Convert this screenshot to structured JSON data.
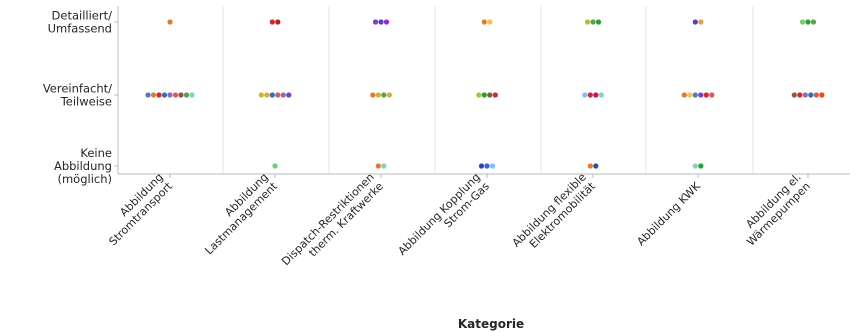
{
  "chart_data": {
    "type": "scatter",
    "xlabel": "Kategorie",
    "ylabel": "",
    "grid": "vertical",
    "categories": [
      "Abbildung Stromtransport",
      "Abbildung Lastmanagement",
      "Dispatch-Restriktionen therm. Kraftwerke",
      "Abbildung Kopplung Strom-Gas",
      "Abbildung flexible Elektromobilität",
      "Abbildung KWK",
      "Abbildung el. Wärmepumpen"
    ],
    "category_lines": [
      [
        "Abbildung",
        "Stromtransport"
      ],
      [
        "Abbildung",
        "Lastmanagement"
      ],
      [
        "Dispatch-Restriktionen",
        "therm. Kraftwerke"
      ],
      [
        "Abbildung Kopplung",
        "Strom-Gas"
      ],
      [
        "Abbildung flexible",
        "Elektromobilität"
      ],
      [
        "Abbildung KWK"
      ],
      [
        "Abbildung el.",
        "Wärmepumpen"
      ]
    ],
    "levels": [
      [
        "Detailliert/",
        "Umfassend"
      ],
      [
        "Vereinfacht/",
        "Teilweise"
      ],
      [
        "Keine",
        "Abbildung",
        "(möglich)"
      ]
    ],
    "points": [
      [
        [
          "#e8792b"
        ],
        [
          "#4e79c8",
          "#e8792b",
          "#d62728",
          "#1f77b4",
          "#9467bd",
          "#e15759",
          "#8c564b",
          "#59a14f",
          "#7fd3c4"
        ],
        []
      ],
      [
        [
          "#d62728",
          "#b5222a"
        ],
        [
          "#bcbd22",
          "#e8a33a",
          "#1f77b4",
          "#e15759",
          "#9467bd",
          "#7b3fbf"
        ],
        [
          "#6fcf6f"
        ]
      ],
      [
        [
          "#7b3fbf",
          "#5a3fb5",
          "#8a2be2"
        ],
        [
          "#e8792b",
          "#bcbd22",
          "#59a14f",
          "#e8a33a"
        ],
        [
          "#e8792b",
          "#7fd3c4"
        ]
      ],
      [
        [
          "#e8792b",
          "#f2c14e"
        ],
        [
          "#9acd32",
          "#2ca02c",
          "#8c564b",
          "#d62728"
        ],
        [
          "#2c3fbf",
          "#3f5fd8",
          "#7fbfff"
        ]
      ],
      [
        [
          "#bcbd22",
          "#59a14f",
          "#2ca02c"
        ],
        [
          "#7fbfff",
          "#d62728",
          "#c2185b",
          "#7fd3c4"
        ],
        [
          "#e8792b",
          "#1f4fbf"
        ]
      ],
      [
        [
          "#5a3fb5",
          "#e8a33a"
        ],
        [
          "#e8792b",
          "#f2c14e",
          "#4e79c8",
          "#7b3fbf",
          "#d62728",
          "#e15759"
        ],
        [
          "#7fd3c4",
          "#2ca02c"
        ]
      ],
      [
        [
          "#6fcf6f",
          "#2ca02c",
          "#59a14f"
        ],
        [
          "#8c564b",
          "#d62728",
          "#9467bd",
          "#1f77b4",
          "#e15759",
          "#ff4500"
        ],
        []
      ]
    ]
  }
}
